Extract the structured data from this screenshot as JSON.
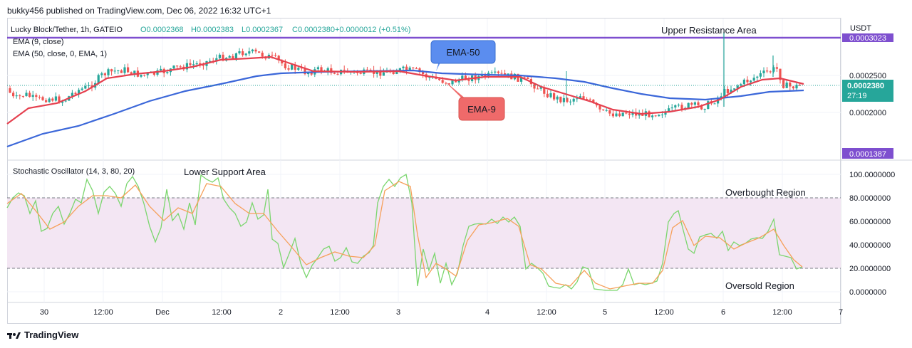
{
  "header": {
    "publish_line": "bukky456 published on TradingView.com, Dec 06, 2022 16:32 UTC+1"
  },
  "legend": {
    "symbol_line": "Lucky Block/Tether, 1h, GATEIO",
    "ohlc": [
      {
        "key": "O",
        "val": "0.0002368"
      },
      {
        "key": "H",
        "val": "0.0002383"
      },
      {
        "key": "L",
        "val": "0.0002367"
      },
      {
        "key": "C",
        "val": "0.0002380"
      }
    ],
    "change": "+0.0000012 (+0.51%)",
    "ema9": "EMA (9, close)",
    "ema50": "EMA (50, close, 0, EMA, 1)",
    "stoch": "Stochastic Oscillator (14, 3, 80, 20)"
  },
  "annotations": {
    "upper_resistance": "Upper Resistance Area",
    "lower_support": "Lower Support Area",
    "overbought": "Overbought Region",
    "oversold": "Oversold Region",
    "ema50_tag": "EMA-50",
    "ema9_tag": "EMA-9"
  },
  "price_axis": {
    "currency": "USDT",
    "labels": [
      "0.0002500",
      "0.0002000"
    ],
    "resistance_label": "0.0003023",
    "current_price": "0.0002380",
    "countdown": "27:19",
    "support_label": "0.0001387"
  },
  "stoch_axis": {
    "labels": [
      "100.0000000",
      "80.0000000",
      "60.0000000",
      "40.0000000",
      "20.0000000",
      "0.0000000"
    ]
  },
  "time_axis": {
    "labels": [
      "30",
      "12:00",
      "Dec",
      "12:00",
      "2",
      "12:00",
      "3",
      "4",
      "12:00",
      "5",
      "12:00",
      "6",
      "12:00",
      "7"
    ]
  },
  "footer": {
    "brand": "TradingView"
  },
  "colors": {
    "bull": "#26a69a",
    "bear": "#ef5350",
    "ema9": "#e5404f",
    "ema50": "#3b67d9",
    "resistance": "#7e4fcf",
    "stoch_k": "#7bd66e",
    "stoch_d": "#f6a05a",
    "band": "#f3e6f3",
    "tag_blue": "#5b8def",
    "tag_red": "#ef6a6a"
  },
  "chart_data": [
    {
      "type": "line",
      "title": "Lucky Block/Tether, 1h, GATEIO",
      "ylabel": "USDT",
      "ylim": [
        0.0001387,
        0.0003023
      ],
      "x": [
        "Nov 30",
        "Nov 30 12:00",
        "Dec 1",
        "Dec 1 12:00",
        "Dec 2",
        "Dec 2 12:00",
        "Dec 3",
        "Dec 3 12:00",
        "Dec 4",
        "Dec 4 12:00",
        "Dec 5",
        "Dec 5 12:00",
        "Dec 6",
        "Dec 6 12:00"
      ],
      "series": [
        {
          "name": "Price (close)",
          "values": [
            0.000237,
            0.000232,
            0.000255,
            0.000265,
            0.000262,
            0.000256,
            0.000254,
            0.00025,
            0.000248,
            0.000238,
            0.00021,
            0.0002,
            0.000215,
            0.000238
          ]
        },
        {
          "name": "EMA (9, close)",
          "values": [
            0.000233,
            0.000236,
            0.000252,
            0.000266,
            0.000261,
            0.000256,
            0.000255,
            0.000248,
            0.00025,
            0.000238,
            0.000218,
            0.000201,
            0.000218,
            0.000238
          ]
        },
        {
          "name": "EMA (50, close, 0, EMA, 1)",
          "values": [
            0.00017,
            0.000185,
            0.000205,
            0.000232,
            0.000249,
            0.000255,
            0.000256,
            0.000254,
            0.000252,
            0.000246,
            0.000234,
            0.000222,
            0.000227,
            0.000231
          ]
        }
      ],
      "reference_lines": [
        {
          "label": "Upper Resistance Area",
          "value": 0.0003023
        }
      ]
    },
    {
      "type": "line",
      "title": "Stochastic Oscillator (14, 3, 80, 20)",
      "ylim": [
        0,
        100
      ],
      "bands": {
        "upper": 80,
        "lower": 20
      },
      "x": [
        "Nov 30",
        "Nov 30 12:00",
        "Dec 1",
        "Dec 1 12:00",
        "Dec 2",
        "Dec 2 12:00",
        "Dec 3",
        "Dec 3 12:00",
        "Dec 4",
        "Dec 4 12:00",
        "Dec 5",
        "Dec 5 12:00",
        "Dec 6",
        "Dec 6 12:00"
      ],
      "series": [
        {
          "name": "%K",
          "values": [
            85,
            52,
            75,
            95,
            35,
            25,
            98,
            20,
            55,
            25,
            2,
            12,
            60,
            20
          ]
        },
        {
          "name": "%D",
          "values": [
            80,
            58,
            70,
            90,
            45,
            30,
            90,
            30,
            55,
            30,
            5,
            10,
            50,
            22
          ]
        }
      ]
    }
  ]
}
